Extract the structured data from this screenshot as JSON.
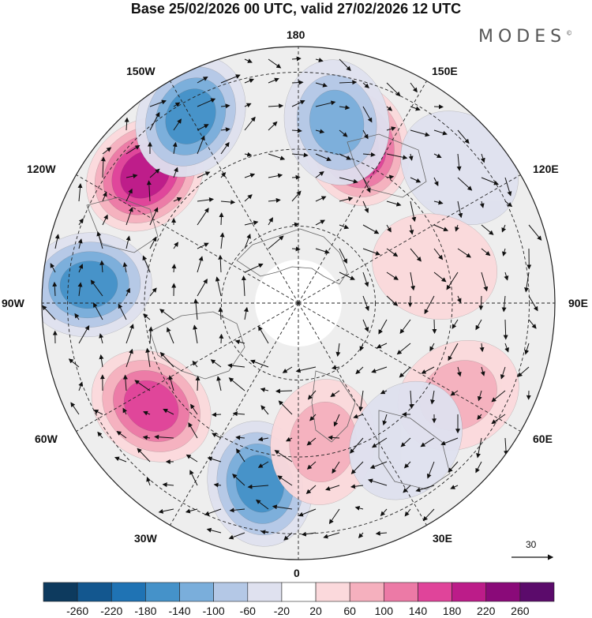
{
  "title": "Base 25/02/2026 00 UTC, valid 27/02/2026 12 UTC",
  "brand": "MODES",
  "longitude_labels": {
    "north": "180",
    "south": "0",
    "east": "90E",
    "west": "90W",
    "nne": "150E",
    "ene": "120E",
    "ese": "60E",
    "sse": "30E",
    "nnw": "150W",
    "wnw": "120W",
    "wsw": "60W",
    "ssw": "30W"
  },
  "vector_scale": {
    "label": "30"
  },
  "colorbar": {
    "ticks": [
      "-260",
      "-220",
      "-180",
      "-140",
      "-100",
      "-60",
      "-20",
      "20",
      "60",
      "100",
      "140",
      "180",
      "220",
      "260"
    ],
    "colors": [
      "#0d3a5e",
      "#13578f",
      "#1f73b4",
      "#4592c9",
      "#7aaedb",
      "#b4c8e6",
      "#dfe1ef",
      "#ffffff",
      "#fbd9dc",
      "#f5b0be",
      "#ec7aa6",
      "#e0449a",
      "#bc1c89",
      "#8a0a79",
      "#5b0b6b"
    ]
  },
  "anomaly_centers": [
    {
      "lon": -130,
      "lat_dist": 0.78,
      "value": 180
    },
    {
      "lon": 160,
      "lat_dist": 0.66,
      "value": 200
    },
    {
      "lon": -95,
      "lat_dist": 0.82,
      "value": -160
    },
    {
      "lon": 168,
      "lat_dist": 0.72,
      "value": -120
    },
    {
      "lon": -150,
      "lat_dist": 0.84,
      "value": -150
    },
    {
      "lon": -55,
      "lat_dist": 0.7,
      "value": 160
    },
    {
      "lon": -12,
      "lat_dist": 0.72,
      "value": -140
    },
    {
      "lon": 10,
      "lat_dist": 0.55,
      "value": 80
    },
    {
      "lon": 60,
      "lat_dist": 0.72,
      "value": 70
    },
    {
      "lon": 38,
      "lat_dist": 0.68,
      "value": -50
    },
    {
      "lon": 130,
      "lat_dist": 0.82,
      "value": -40
    },
    {
      "lon": 105,
      "lat_dist": 0.55,
      "value": 30
    }
  ]
}
